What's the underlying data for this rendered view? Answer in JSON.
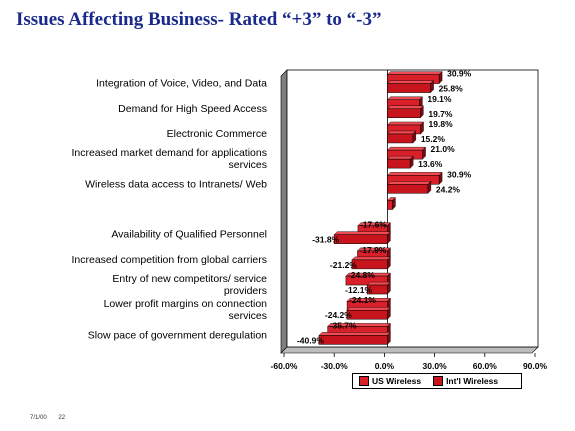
{
  "title": "Issues Affecting Business- Rated “+3” to “-3”",
  "footer": {
    "date": "7/1/00",
    "page": "22"
  },
  "colors": {
    "us": "#d9202a",
    "intl": "#c8141c",
    "wall": "#7f7f7f",
    "grid": "#e6e6e6"
  },
  "chart_data": {
    "type": "bar",
    "orientation": "horizontal",
    "categories": [
      "Integration of Voice, Video, and Data",
      "Demand for High Speed Access",
      "Electronic Commerce",
      "Increased market demand for applications services",
      "Wireless data access to Intranets/ Web",
      "",
      "Availability of Qualified Personnel",
      "Increased competition from global carriers",
      "Entry of new competitors/ service providers",
      "Lower profit margins on connection services",
      "Slow pace of government deregulation"
    ],
    "series": [
      {
        "name": "US Wireless",
        "values": [
          30.9,
          19.1,
          19.8,
          21.0,
          30.9,
          3.0,
          -17.6,
          -17.9,
          -24.8,
          -24.1,
          -35.7
        ],
        "labels": [
          "30.9%",
          "19.1%",
          "19.8%",
          "21.0%",
          "30.9%",
          "",
          "-17.6%",
          "-17.9%",
          "-24.8%",
          "-24.1%",
          "-35.7%"
        ]
      },
      {
        "name": "Int'l Wireless",
        "values": [
          25.8,
          19.7,
          15.2,
          13.6,
          24.2,
          null,
          -31.8,
          -21.2,
          -12.1,
          -24.2,
          -40.9
        ],
        "labels": [
          "25.8%",
          "19.7%",
          "15.2%",
          "13.6%",
          "24.2%",
          "",
          "-31.8%",
          "-21.2%",
          "-12.1%",
          "-24.2%",
          "-40.9%"
        ]
      }
    ],
    "xlim": [
      -60,
      90
    ],
    "xticks": [
      "-60.0%",
      "-30.0%",
      "0.0%",
      "30.0%",
      "60.0%",
      "90.0%"
    ],
    "xtick_values": [
      -60,
      -30,
      0,
      30,
      60,
      90
    ],
    "legend": "bottom-right",
    "grid": false
  }
}
